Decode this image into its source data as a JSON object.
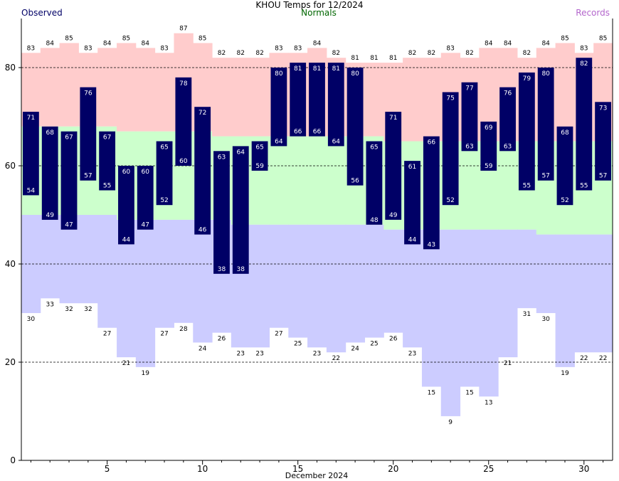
{
  "chart_data": {
    "type": "bar",
    "title": "KHOU Temps for 12/2024",
    "legend": {
      "observed": "Observed",
      "normals": "Normals",
      "records": "Records"
    },
    "xlabel": "December 2024",
    "x_ticks": [
      5,
      10,
      15,
      20,
      25,
      30
    ],
    "y_ticks": [
      0,
      20,
      40,
      60,
      80
    ],
    "ylim": [
      0,
      90
    ],
    "days": [
      1,
      2,
      3,
      4,
      5,
      6,
      7,
      8,
      9,
      10,
      11,
      12,
      13,
      14,
      15,
      16,
      17,
      18,
      19,
      20,
      21,
      22,
      23,
      24,
      25,
      26,
      27,
      28,
      29,
      30,
      31
    ],
    "observed_high": [
      71,
      68,
      67,
      76,
      67,
      60,
      60,
      65,
      78,
      72,
      63,
      64,
      65,
      80,
      81,
      81,
      81,
      80,
      65,
      71,
      61,
      66,
      75,
      77,
      69,
      76,
      79,
      80,
      68,
      82,
      73
    ],
    "observed_low": [
      54,
      49,
      47,
      57,
      55,
      44,
      47,
      52,
      60,
      46,
      38,
      38,
      59,
      64,
      66,
      66,
      64,
      56,
      48,
      49,
      44,
      43,
      52,
      63,
      59,
      63,
      55,
      57,
      52,
      55,
      57
    ],
    "normal_high": [
      68,
      68,
      68,
      68,
      68,
      67,
      67,
      67,
      67,
      67,
      66,
      66,
      66,
      66,
      66,
      66,
      66,
      66,
      66,
      65,
      65,
      65,
      65,
      65,
      65,
      65,
      65,
      65,
      65,
      65,
      65
    ],
    "normal_low": [
      50,
      50,
      50,
      50,
      50,
      49,
      49,
      49,
      49,
      49,
      49,
      48,
      48,
      48,
      48,
      48,
      48,
      48,
      48,
      47,
      47,
      47,
      47,
      47,
      47,
      47,
      47,
      46,
      46,
      46,
      46
    ],
    "record_high": [
      83,
      84,
      85,
      83,
      84,
      85,
      84,
      83,
      87,
      85,
      82,
      82,
      82,
      83,
      83,
      84,
      82,
      81,
      81,
      81,
      82,
      82,
      83,
      82,
      84,
      84,
      82,
      84,
      85,
      83,
      85
    ],
    "record_low": [
      30,
      33,
      32,
      32,
      27,
      21,
      19,
      27,
      28,
      24,
      26,
      23,
      23,
      27,
      25,
      23,
      22,
      24,
      25,
      26,
      23,
      15,
      9,
      15,
      13,
      21,
      31,
      30,
      19,
      22,
      22
    ],
    "colors": {
      "observed": "#000066",
      "normals": "#ccffcc",
      "record_high": "#ffcccc",
      "record_low": "#ccccff",
      "normals_text": "#006600",
      "records_text": "#b366cc"
    },
    "grid": "dashed"
  }
}
